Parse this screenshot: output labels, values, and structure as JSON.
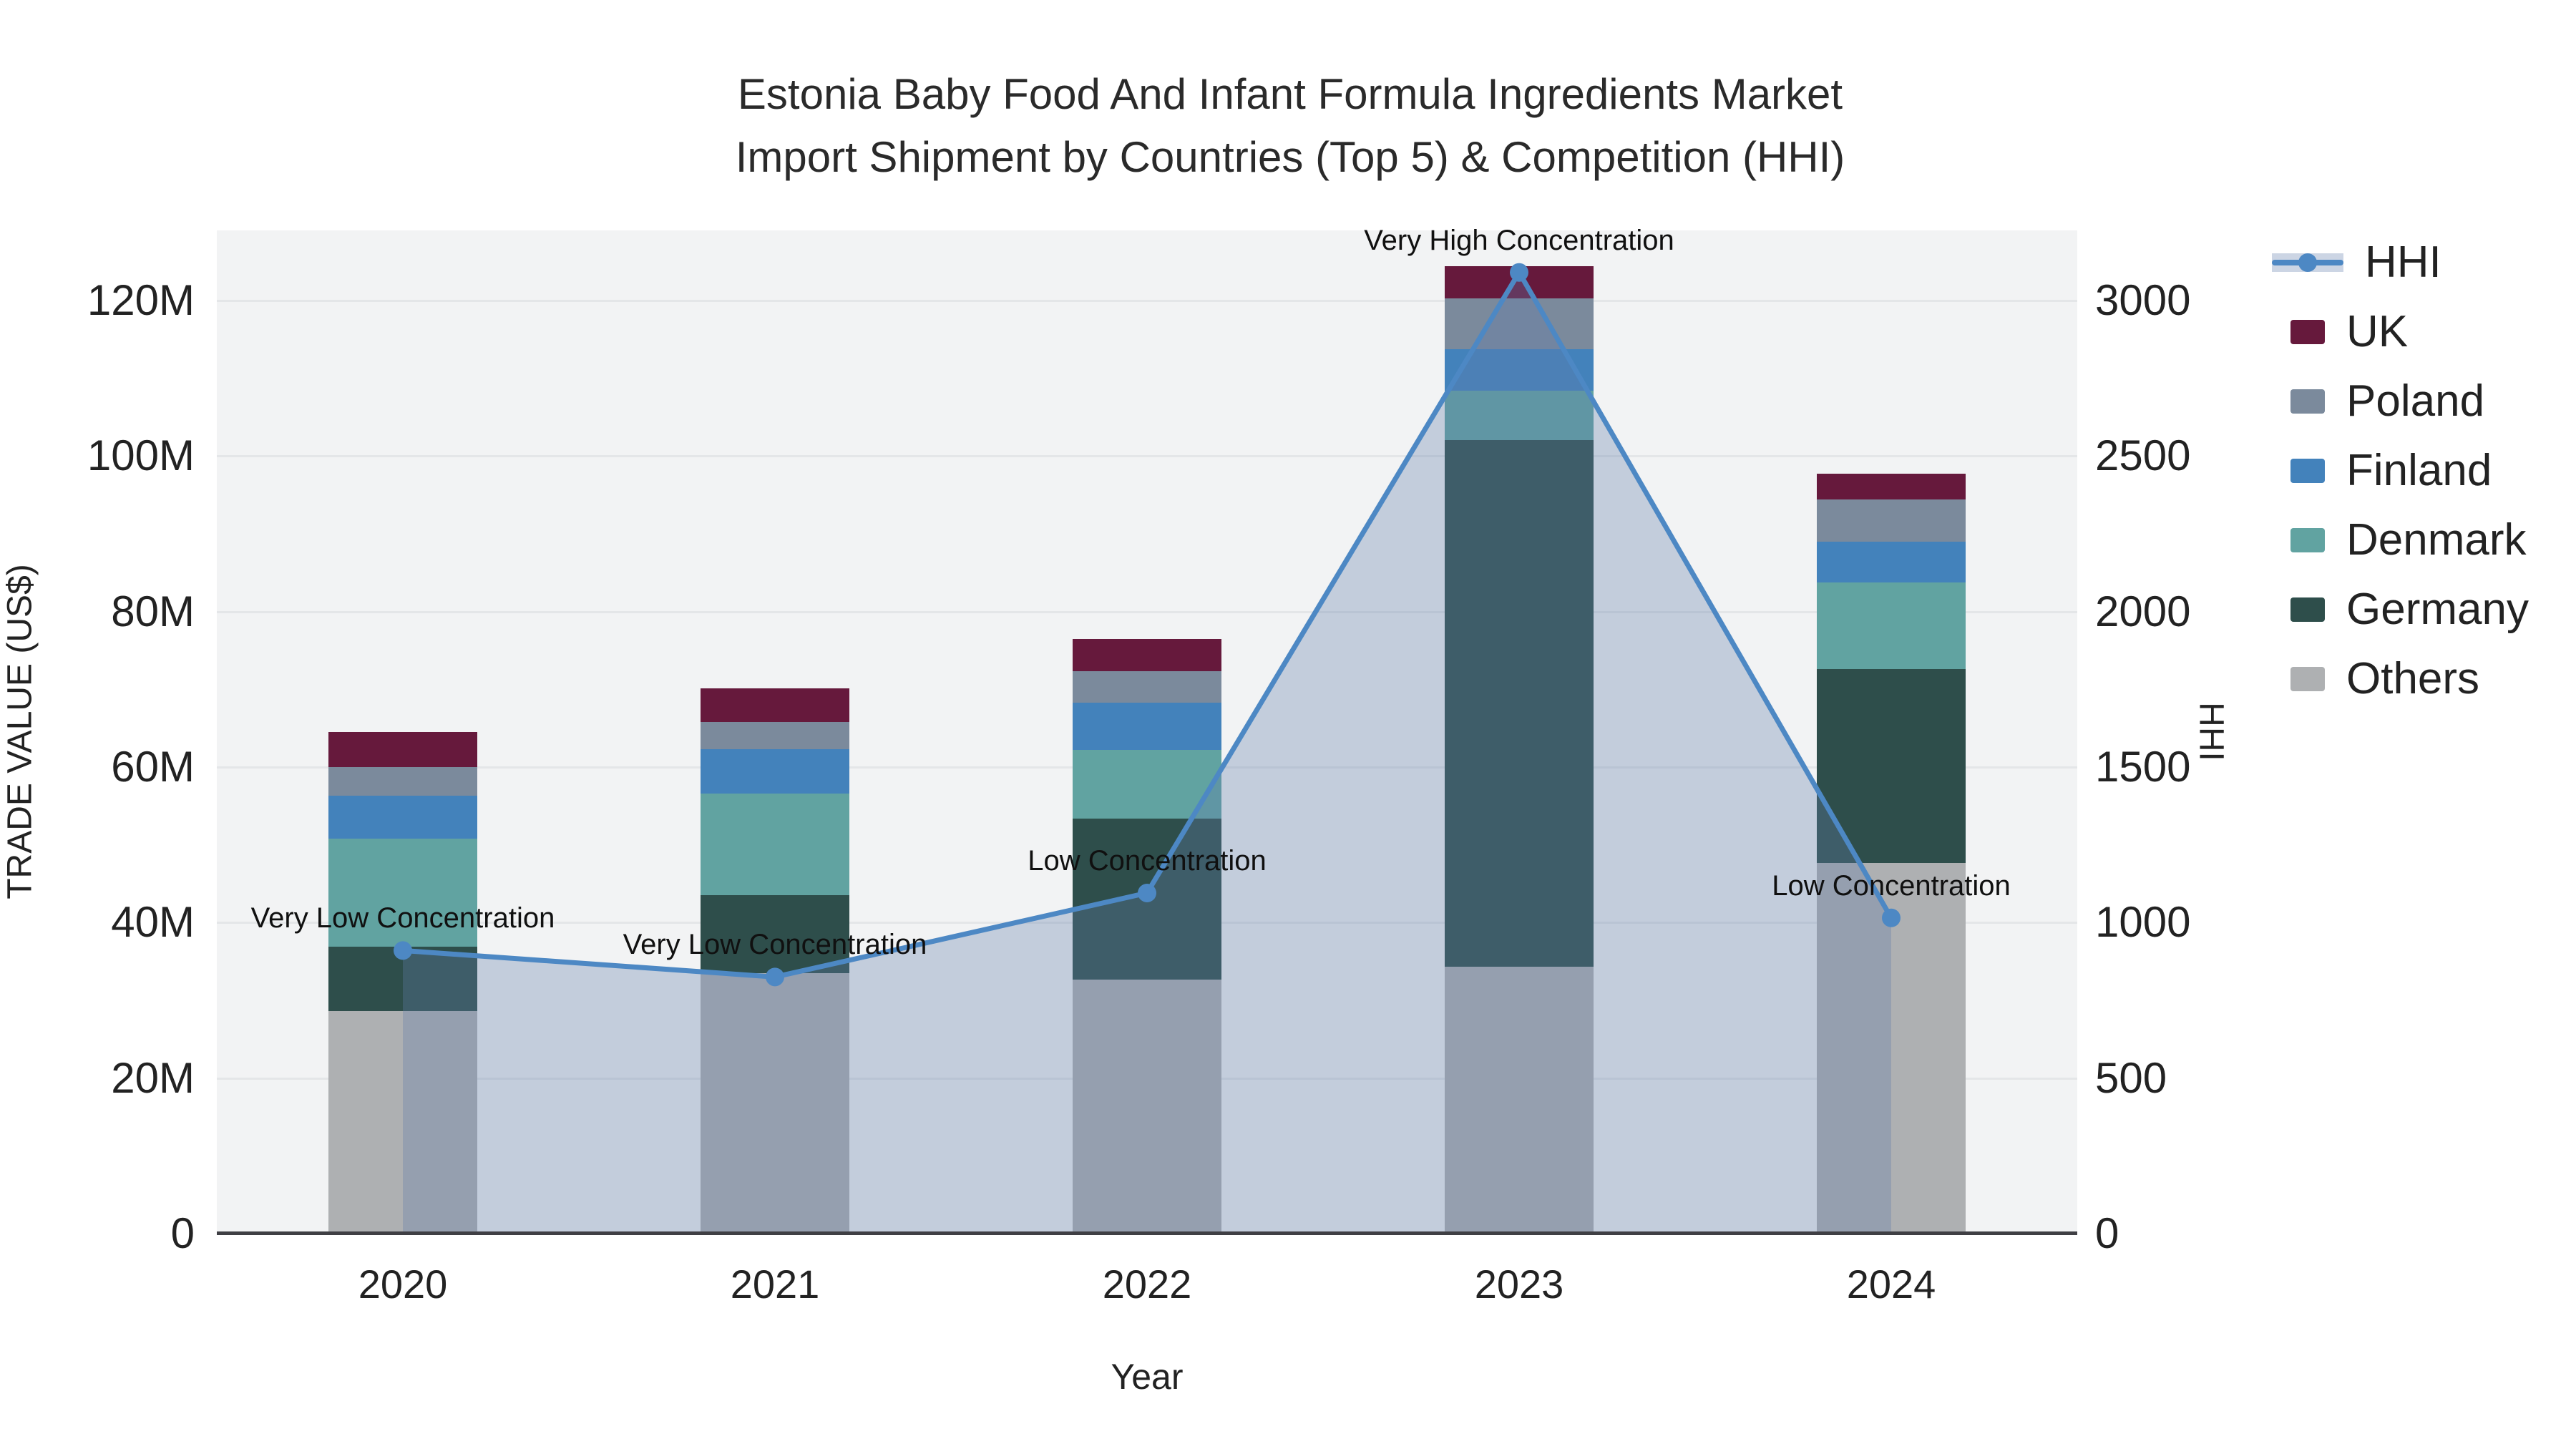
{
  "title": {
    "line1": "Estonia Baby Food And Infant Formula Ingredients Market",
    "line2": "Import Shipment by Countries (Top 5) & Competition (HHI)"
  },
  "axes": {
    "y_left": {
      "title": "TRADE VALUE (US$)",
      "ticks": [
        "0",
        "20M",
        "40M",
        "60M",
        "80M",
        "100M",
        "120M"
      ],
      "tick_step_musd": 20,
      "axis_max_musd": 129
    },
    "y_right": {
      "title": "HHI",
      "ticks": [
        "0",
        "500",
        "1000",
        "1500",
        "2000",
        "2500",
        "3000"
      ],
      "tick_step": 500,
      "axis_max": 3225
    },
    "x": {
      "title": "Year",
      "categories": [
        "2020",
        "2021",
        "2022",
        "2023",
        "2024"
      ]
    }
  },
  "legend": {
    "items": [
      {
        "label": "HHI",
        "type": "line"
      },
      {
        "label": "UK",
        "type": "swatch"
      },
      {
        "label": "Poland",
        "type": "swatch"
      },
      {
        "label": "Finland",
        "type": "swatch"
      },
      {
        "label": "Denmark",
        "type": "swatch"
      },
      {
        "label": "Germany",
        "type": "swatch"
      },
      {
        "label": "Others",
        "type": "swatch"
      }
    ]
  },
  "colors": {
    "UK": "#66193c",
    "Poland": "#7b8a9c",
    "Finland": "#4382bb",
    "Denmark": "#61a3a1",
    "Germany": "#2e4e4b",
    "Others": "#aeb0b2",
    "hhi_line": "#4d88c4",
    "hhi_fill": "rgba(95,125,170,0.32)",
    "plot_bg": "#f2f3f4",
    "gridline": "#e4e6e8",
    "axis_line": "#3f3f44"
  },
  "chart_data": {
    "type": "bar",
    "subtype": "stacked-bars-with-line-area-overlay",
    "title": "Estonia Baby Food And Infant Formula Ingredients Market Import Shipment by Countries (Top 5) & Competition (HHI)",
    "xlabel": "Year",
    "ylabel_left": "TRADE VALUE (US$)",
    "ylabel_right": "HHI",
    "ylim_left_musd": [
      0,
      129
    ],
    "ylim_right_hhi": [
      0,
      3225
    ],
    "grid": true,
    "legend_position": "right",
    "categories": [
      "2020",
      "2021",
      "2022",
      "2023",
      "2024"
    ],
    "series": [
      {
        "name": "Others",
        "stack_order_bottom_to_top": 1,
        "values_musd": [
          28.6,
          33.5,
          32.7,
          34.3,
          47.7
        ]
      },
      {
        "name": "Germany",
        "stack_order_bottom_to_top": 2,
        "values_musd": [
          8.3,
          10.0,
          20.7,
          67.7,
          24.9
        ]
      },
      {
        "name": "Denmark",
        "stack_order_bottom_to_top": 3,
        "values_musd": [
          13.9,
          13.1,
          8.8,
          6.4,
          11.1
        ]
      },
      {
        "name": "Finland",
        "stack_order_bottom_to_top": 4,
        "values_musd": [
          5.5,
          5.7,
          6.1,
          5.3,
          5.3
        ]
      },
      {
        "name": "Poland",
        "stack_order_bottom_to_top": 5,
        "values_musd": [
          3.7,
          3.5,
          4.0,
          6.6,
          5.4
        ]
      },
      {
        "name": "UK",
        "stack_order_bottom_to_top": 6,
        "values_musd": [
          4.5,
          4.3,
          4.2,
          4.1,
          3.3
        ]
      }
    ],
    "bar_totals_musd": [
      64.5,
      70.1,
      76.5,
      124.4,
      97.7
    ],
    "line_series": {
      "name": "HHI",
      "axis": "right",
      "style": "line+markers+area-fill-to-zero",
      "values": [
        910,
        825,
        1095,
        3090,
        1015
      ]
    },
    "annotations": [
      {
        "category": "2020",
        "text": "Very Low Concentration"
      },
      {
        "category": "2021",
        "text": "Very Low Concentration"
      },
      {
        "category": "2022",
        "text": "Low Concentration"
      },
      {
        "category": "2023",
        "text": "Very High Concentration"
      },
      {
        "category": "2024",
        "text": "Low Concentration"
      }
    ]
  }
}
